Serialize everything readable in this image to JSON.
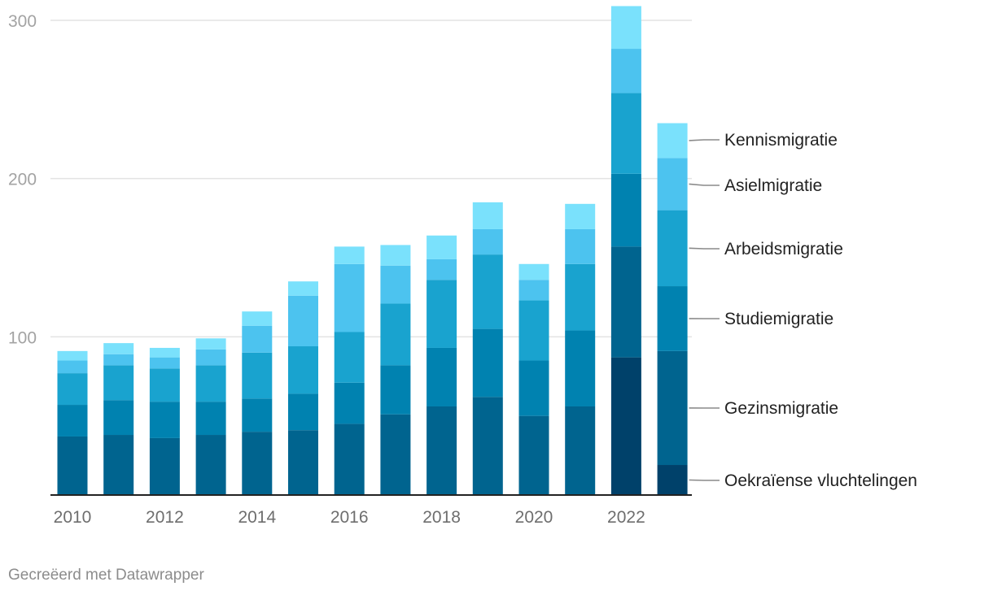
{
  "chart_data": {
    "type": "bar",
    "stacked": true,
    "x": [
      2010,
      2011,
      2012,
      2013,
      2014,
      2015,
      2016,
      2017,
      2018,
      2019,
      2020,
      2021,
      2022,
      2023
    ],
    "x_tick_labels": [
      "2010",
      "2012",
      "2014",
      "2016",
      "2018",
      "2020",
      "2022"
    ],
    "ylim": [
      0,
      300
    ],
    "y_ticks": [
      100,
      200,
      300
    ],
    "grid": true,
    "legend": "right, labels aligned with last bar",
    "series": [
      {
        "name": "Oekraïense vluchtelingen",
        "color": "#00416a",
        "values": [
          0,
          0,
          0,
          0,
          0,
          0,
          0,
          0,
          0,
          0,
          0,
          0,
          87,
          19
        ]
      },
      {
        "name": "Gezinsmigratie",
        "color": "#00648f",
        "values": [
          37,
          38,
          36,
          38,
          40,
          41,
          45,
          51,
          56,
          62,
          50,
          56,
          70,
          72
        ]
      },
      {
        "name": "Studiemigratie",
        "color": "#0082b0",
        "values": [
          20,
          22,
          23,
          21,
          21,
          23,
          26,
          31,
          37,
          43,
          35,
          48,
          46,
          41
        ]
      },
      {
        "name": "Arbeidsmigratie",
        "color": "#19a3cf",
        "values": [
          20,
          22,
          21,
          23,
          29,
          30,
          32,
          39,
          43,
          47,
          38,
          42,
          51,
          48
        ]
      },
      {
        "name": "Asielmigratie",
        "color": "#4cc3ef",
        "values": [
          8,
          7,
          7,
          10,
          17,
          32,
          43,
          24,
          13,
          16,
          13,
          22,
          28,
          33
        ]
      },
      {
        "name": "Kennismigratie",
        "color": "#7ae1fc",
        "values": [
          6,
          7,
          6,
          7,
          9,
          9,
          11,
          13,
          15,
          17,
          10,
          16,
          27,
          22
        ]
      }
    ],
    "credit": "Gecreëerd met Datawrapper"
  }
}
